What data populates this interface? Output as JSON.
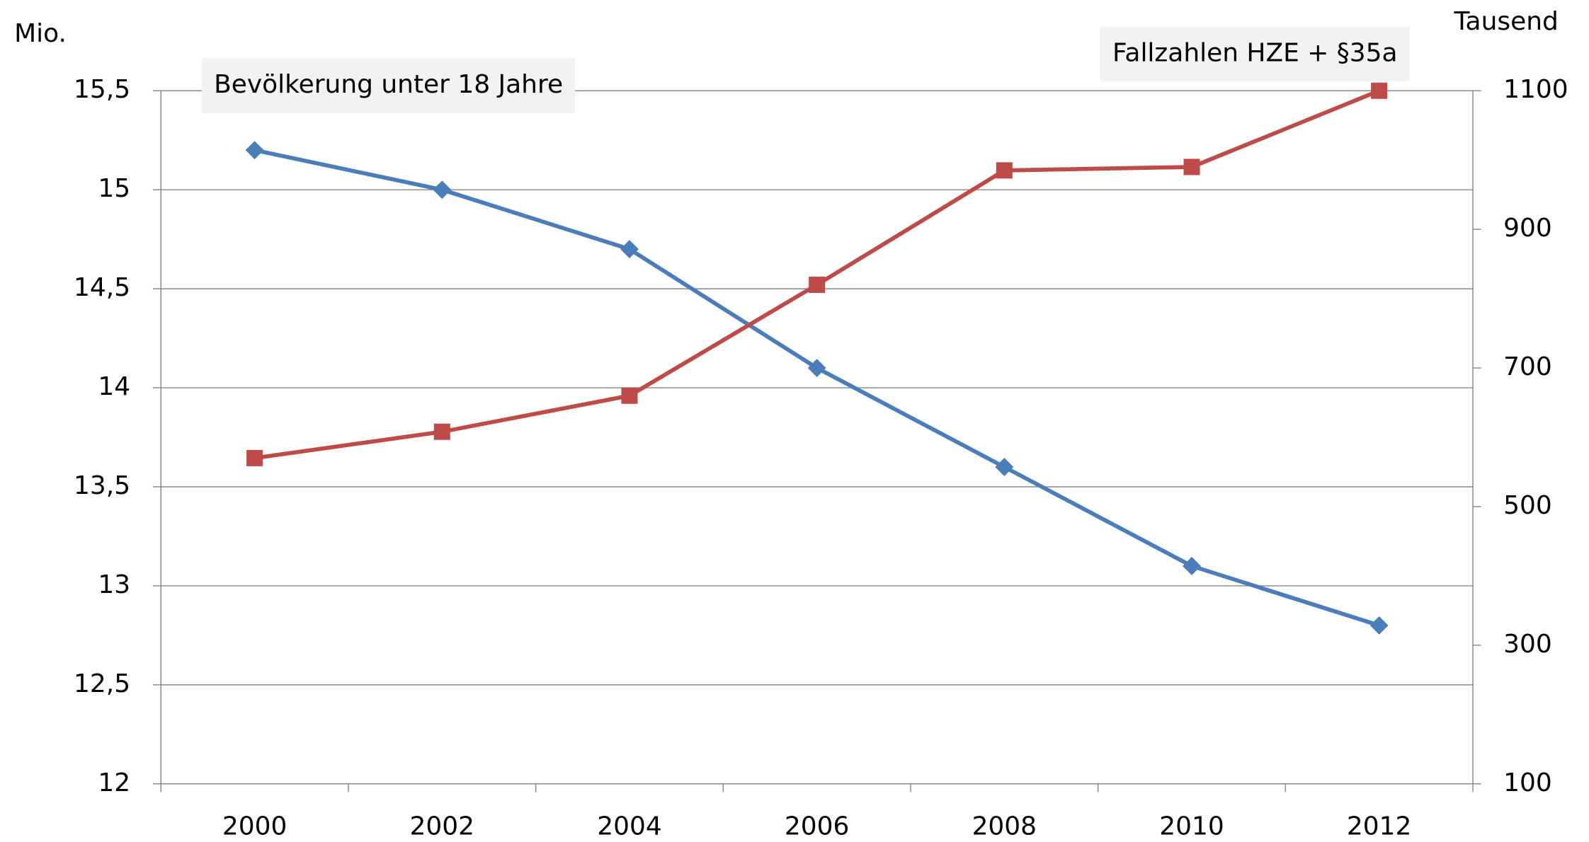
{
  "chart_data": {
    "type": "line",
    "categories": [
      "2000",
      "2002",
      "2004",
      "2006",
      "2008",
      "2010",
      "2012"
    ],
    "ylabel": "Mio.",
    "y2label": "Tausend",
    "ylim": [
      12,
      15.5
    ],
    "yticks": [
      {
        "value": 12,
        "label": "12"
      },
      {
        "value": 12.5,
        "label": "12,5"
      },
      {
        "value": 13,
        "label": "13"
      },
      {
        "value": 13.5,
        "label": "13,5"
      },
      {
        "value": 14,
        "label": "14"
      },
      {
        "value": 14.5,
        "label": "14,5"
      },
      {
        "value": 15,
        "label": "15"
      },
      {
        "value": 15.5,
        "label": "15,5"
      }
    ],
    "y2lim": [
      100,
      1100
    ],
    "y2ticks": [
      100,
      300,
      500,
      700,
      900,
      1100
    ],
    "grid": true,
    "series": [
      {
        "name": "Bevölkerung unter 18 Jahre",
        "color": "#4a7ebb",
        "marker": "diamond",
        "values": [
          15.2,
          15.0,
          14.7,
          14.1,
          13.6,
          13.1,
          12.8
        ]
      },
      {
        "name": "Fallzahlen HZE + §35a",
        "color": "#be4b48",
        "marker": "square",
        "axis": "y2",
        "values": [
          570,
          608,
          660,
          820,
          985,
          990,
          1100
        ]
      }
    ]
  }
}
